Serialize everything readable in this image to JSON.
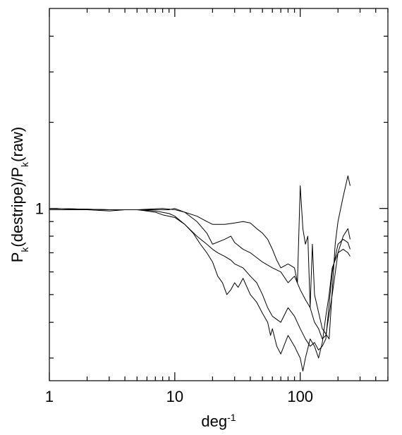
{
  "chart_data": {
    "type": "line",
    "title": "",
    "xlabel_base": "deg",
    "xlabel_exp": "-1",
    "ylabel_parts": [
      "P",
      "k",
      "(destripe)/P",
      "k",
      "(raw)"
    ],
    "xscale": "log",
    "yscale": "log",
    "xlim": [
      1,
      500
    ],
    "ylim": [
      0.25,
      5
    ],
    "x_ticks": [
      1,
      10,
      100
    ],
    "x_tick_labels": [
      "1",
      "10",
      "100"
    ],
    "y_ticks": [
      1
    ],
    "y_tick_labels": [
      "1"
    ],
    "grid": false,
    "legend": "none",
    "series": [
      {
        "values": [
          [
            1,
            1.0
          ],
          [
            3,
            0.99
          ],
          [
            5,
            0.99
          ],
          [
            8,
            1.0
          ],
          [
            10,
            0.99
          ],
          [
            12,
            0.97
          ],
          [
            15,
            0.94
          ],
          [
            18,
            0.9
          ],
          [
            20,
            0.88
          ],
          [
            25,
            0.88
          ],
          [
            30,
            0.89
          ],
          [
            35,
            0.9
          ],
          [
            40,
            0.89
          ],
          [
            45,
            0.85
          ],
          [
            50,
            0.82
          ],
          [
            55,
            0.78
          ],
          [
            60,
            0.72
          ],
          [
            65,
            0.66
          ],
          [
            70,
            0.62
          ],
          [
            80,
            0.64
          ],
          [
            90,
            0.62
          ],
          [
            95,
            0.55
          ],
          [
            100,
            1.2
          ],
          [
            105,
            0.85
          ],
          [
            110,
            0.75
          ],
          [
            115,
            0.8
          ],
          [
            120,
            0.45
          ],
          [
            125,
            0.75
          ],
          [
            130,
            0.5
          ],
          [
            150,
            0.38
          ],
          [
            170,
            0.35
          ],
          [
            190,
            0.75
          ],
          [
            200,
            0.9
          ],
          [
            220,
            1.1
          ],
          [
            240,
            1.3
          ],
          [
            250,
            1.2
          ]
        ]
      },
      {
        "values": [
          [
            1,
            1.0
          ],
          [
            3,
            0.99
          ],
          [
            5,
            0.99
          ],
          [
            7,
            0.99
          ],
          [
            9,
            0.99
          ],
          [
            10,
            1.0
          ],
          [
            12,
            0.97
          ],
          [
            15,
            0.9
          ],
          [
            18,
            0.82
          ],
          [
            20,
            0.75
          ],
          [
            25,
            0.78
          ],
          [
            28,
            0.8
          ],
          [
            30,
            0.76
          ],
          [
            35,
            0.72
          ],
          [
            40,
            0.7
          ],
          [
            50,
            0.65
          ],
          [
            60,
            0.62
          ],
          [
            70,
            0.6
          ],
          [
            80,
            0.55
          ],
          [
            90,
            0.58
          ],
          [
            100,
            0.52
          ],
          [
            110,
            0.48
          ],
          [
            120,
            0.45
          ],
          [
            130,
            0.4
          ],
          [
            140,
            0.38
          ],
          [
            150,
            0.35
          ],
          [
            160,
            0.36
          ],
          [
            180,
            0.5
          ],
          [
            200,
            0.7
          ],
          [
            220,
            0.8
          ],
          [
            240,
            0.85
          ],
          [
            250,
            0.78
          ]
        ]
      },
      {
        "values": [
          [
            1,
            1.0
          ],
          [
            3,
            0.99
          ],
          [
            5,
            0.99
          ],
          [
            7,
            0.97
          ],
          [
            8,
            0.95
          ],
          [
            10,
            0.93
          ],
          [
            12,
            0.88
          ],
          [
            15,
            0.8
          ],
          [
            18,
            0.75
          ],
          [
            20,
            0.72
          ],
          [
            22,
            0.7
          ],
          [
            25,
            0.68
          ],
          [
            28,
            0.66
          ],
          [
            30,
            0.64
          ],
          [
            35,
            0.62
          ],
          [
            40,
            0.58
          ],
          [
            45,
            0.55
          ],
          [
            50,
            0.5
          ],
          [
            55,
            0.45
          ],
          [
            60,
            0.42
          ],
          [
            70,
            0.4
          ],
          [
            80,
            0.45
          ],
          [
            90,
            0.42
          ],
          [
            100,
            0.38
          ],
          [
            110,
            0.35
          ],
          [
            120,
            0.33
          ],
          [
            130,
            0.34
          ],
          [
            140,
            0.32
          ],
          [
            150,
            0.33
          ],
          [
            160,
            0.35
          ],
          [
            180,
            0.6
          ],
          [
            200,
            0.75
          ],
          [
            220,
            0.78
          ],
          [
            240,
            0.76
          ],
          [
            250,
            0.72
          ]
        ]
      },
      {
        "values": [
          [
            1,
            0.99
          ],
          [
            2,
            0.99
          ],
          [
            3,
            0.98
          ],
          [
            4,
            0.99
          ],
          [
            5,
            0.99
          ],
          [
            7,
            0.98
          ],
          [
            9,
            0.96
          ],
          [
            10,
            0.94
          ],
          [
            12,
            0.88
          ],
          [
            14,
            0.82
          ],
          [
            16,
            0.75
          ],
          [
            18,
            0.7
          ],
          [
            20,
            0.65
          ],
          [
            22,
            0.58
          ],
          [
            24,
            0.55
          ],
          [
            26,
            0.5
          ],
          [
            28,
            0.52
          ],
          [
            30,
            0.55
          ],
          [
            32,
            0.53
          ],
          [
            35,
            0.57
          ],
          [
            40,
            0.5
          ],
          [
            45,
            0.47
          ],
          [
            50,
            0.43
          ],
          [
            55,
            0.4
          ],
          [
            58,
            0.36
          ],
          [
            60,
            0.38
          ],
          [
            65,
            0.33
          ],
          [
            70,
            0.31
          ],
          [
            80,
            0.36
          ],
          [
            90,
            0.33
          ],
          [
            100,
            0.3
          ],
          [
            105,
            0.27
          ],
          [
            110,
            0.3
          ],
          [
            120,
            0.35
          ],
          [
            130,
            0.33
          ],
          [
            140,
            0.3
          ],
          [
            150,
            0.34
          ],
          [
            160,
            0.42
          ],
          [
            170,
            0.5
          ],
          [
            180,
            0.62
          ],
          [
            200,
            0.7
          ],
          [
            220,
            0.72
          ],
          [
            240,
            0.7
          ],
          [
            250,
            0.68
          ]
        ]
      }
    ]
  }
}
